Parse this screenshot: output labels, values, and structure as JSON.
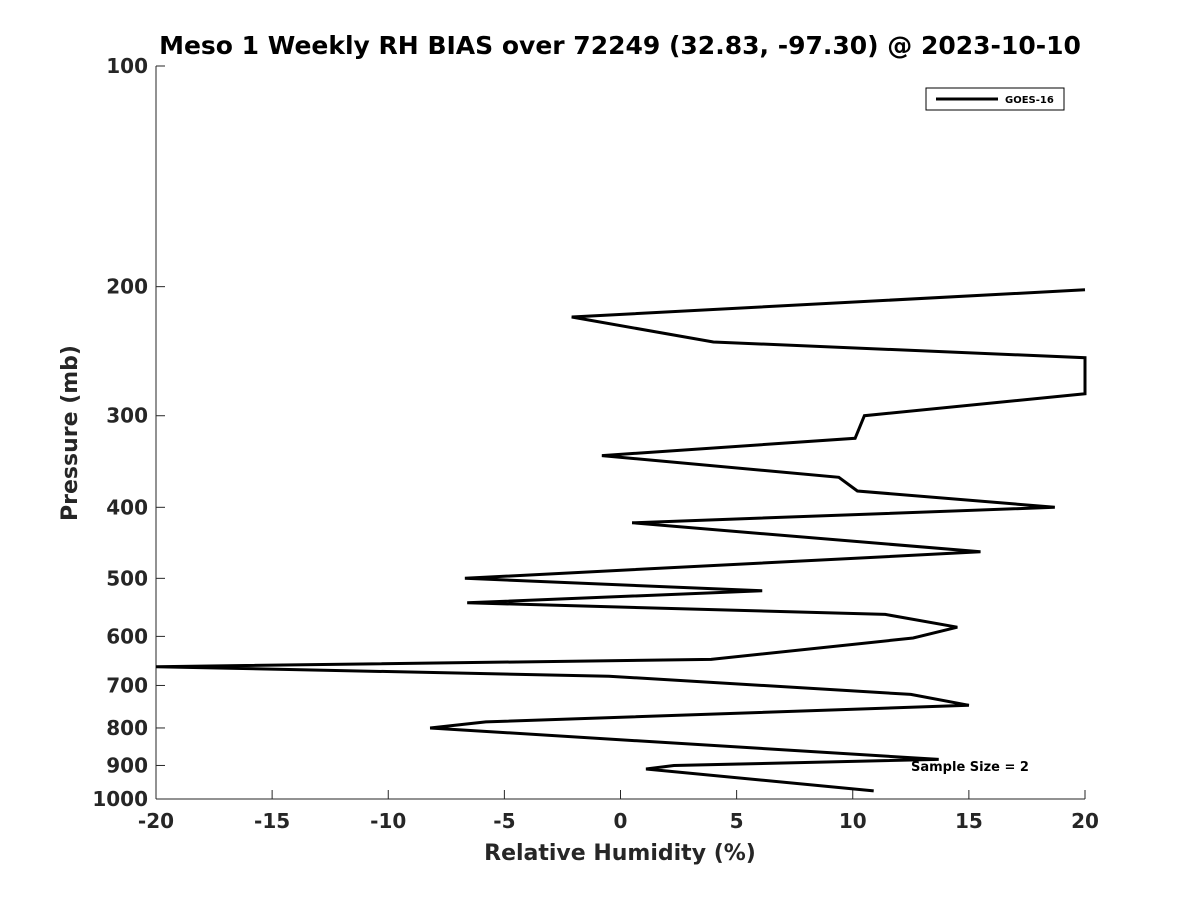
{
  "chart_data": {
    "type": "line",
    "title": "Meso 1 Weekly RH BIAS over 72249 (32.83, -97.30) @ 2023-10-10",
    "xlabel": "Relative Humidity (%)",
    "ylabel": "Pressure (mb)",
    "xlim": [
      -20,
      20
    ],
    "ylim": [
      100,
      1000
    ],
    "y_scale": "log",
    "y_reversed": true,
    "xticks": [
      -20,
      -15,
      -10,
      -5,
      0,
      5,
      10,
      15,
      20
    ],
    "xtick_labels": [
      "-20",
      "-15",
      "-10",
      "-5",
      "0",
      "5",
      "10",
      "15",
      "20"
    ],
    "yticks": [
      100,
      200,
      300,
      400,
      500,
      600,
      700,
      800,
      900,
      1000
    ],
    "ytick_labels": [
      "100",
      "200",
      "300",
      "400",
      "500",
      "600",
      "700",
      "800",
      "900",
      "1000"
    ],
    "grid": false,
    "legend_position": "top-right",
    "annotation": "Sample Size = 2",
    "series": [
      {
        "name": "GOES-16",
        "color": "#000000",
        "x": [
          20,
          -2.1,
          4.0,
          20,
          20,
          10.5,
          10.1,
          -0.8,
          9.4,
          10.2,
          18.7,
          0.5,
          15.5,
          -6.7,
          6.1,
          -6.6,
          11.4,
          14.5,
          12.6,
          3.9,
          -20,
          -0.5,
          12.5,
          15.0,
          -5.8,
          -8.2,
          13.7,
          2.3,
          1.1,
          10.9
        ],
        "y": [
          202,
          220,
          238,
          250,
          280,
          300,
          322,
          340,
          364,
          380,
          400,
          420,
          460,
          500,
          520,
          540,
          560,
          583,
          603,
          645,
          660,
          680,
          720,
          745,
          785,
          800,
          883,
          900,
          910,
          975
        ]
      }
    ]
  }
}
